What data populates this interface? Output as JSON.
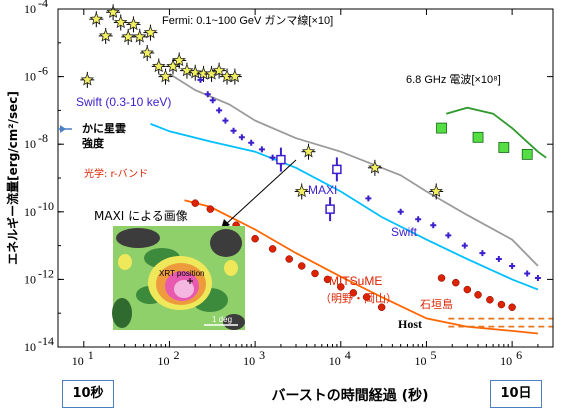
{
  "chart_data": {
    "type": "scatter",
    "xlabel": "バーストの時間経過 (秒)",
    "ylabel": "エネルギー流量[erg/cm²/sec]",
    "x_scale": "log",
    "y_scale": "log",
    "xlim": [
      5,
      3000000
    ],
    "ylim": [
      1e-14,
      0.0001
    ],
    "x_ticks": [
      {
        "exp": "1",
        "v": 10
      },
      {
        "exp": "2",
        "v": 100
      },
      {
        "exp": "3",
        "v": 1000
      },
      {
        "exp": "4",
        "v": 10000
      },
      {
        "exp": "5",
        "v": 100000
      },
      {
        "exp": "6",
        "v": 1000000
      }
    ],
    "y_ticks": [
      {
        "exp": "-4",
        "v": 0.0001
      },
      {
        "exp": "-6",
        "v": 1e-06
      },
      {
        "exp": "-8",
        "v": 1e-08
      },
      {
        "exp": "-10",
        "v": 1e-10
      },
      {
        "exp": "-12",
        "v": 1e-12
      },
      {
        "exp": "-14",
        "v": 1e-14
      }
    ],
    "tick_base": "10",
    "series": [
      {
        "name": "Fermi: 0.1~100 GeV ガンマ線[×10]",
        "color": "#222222",
        "marker": "star",
        "points": [
          [
            11,
            8e-07
          ],
          [
            14,
            5e-05
          ],
          [
            18,
            1.6e-05
          ],
          [
            22,
            8e-05
          ],
          [
            27,
            4e-05
          ],
          [
            33,
            1.5e-05
          ],
          [
            38,
            3.5e-05
          ],
          [
            45,
            1.5e-05
          ],
          [
            55,
            5e-06
          ],
          [
            60,
            2e-05
          ],
          [
            75,
            2e-06
          ],
          [
            90,
            1e-06
          ],
          [
            110,
            2e-06
          ],
          [
            130,
            3e-06
          ],
          [
            160,
            1.5e-06
          ],
          [
            200,
            1.3e-06
          ],
          [
            250,
            1.2e-06
          ],
          [
            310,
            1.2e-06
          ],
          [
            380,
            1.5e-06
          ],
          [
            470,
            1e-06
          ],
          [
            580,
            1e-06
          ],
          [
            3500,
            4e-10
          ],
          [
            4200,
            6e-09
          ],
          [
            25000,
            2e-09
          ],
          [
            130000,
            4e-10
          ]
        ]
      },
      {
        "name": "Swift (0.3-10 keV)",
        "color": "#3a1fcc",
        "marker": "plus",
        "points": [
          [
            230,
            8e-07
          ],
          [
            280,
            3e-07
          ],
          [
            320,
            2e-07
          ],
          [
            380,
            1e-07
          ],
          [
            450,
            5e-08
          ],
          [
            560,
            2.5e-08
          ],
          [
            700,
            1.6e-08
          ],
          [
            900,
            1.1e-08
          ],
          [
            1200,
            7e-09
          ],
          [
            1600,
            4e-09
          ],
          [
            2000,
            2.7e-09
          ],
          [
            21000,
            2.5e-10
          ],
          [
            50000,
            1e-10
          ],
          [
            80000,
            6e-11
          ],
          [
            120000,
            4e-11
          ],
          [
            180000,
            2e-11
          ],
          [
            280000,
            1e-11
          ],
          [
            450000,
            6e-12
          ],
          [
            700000,
            4e-12
          ],
          [
            1000000,
            2.5e-12
          ],
          [
            1500000,
            1.5e-12
          ],
          [
            2000000,
            1.1e-12
          ]
        ]
      },
      {
        "name": "光学: r-バンド",
        "color": "#dd2200",
        "marker": "circle",
        "points": [
          [
            200,
            1.8e-10
          ],
          [
            300,
            1.2e-10
          ],
          [
            600,
            4e-11
          ],
          [
            1000,
            1.6e-11
          ],
          [
            1600,
            8e-12
          ],
          [
            2500,
            4e-12
          ],
          [
            3500,
            2.5e-12
          ],
          [
            5000,
            1.5e-12
          ],
          [
            7000,
            1e-12
          ],
          [
            10000,
            6e-13
          ],
          [
            14000,
            4e-13
          ],
          [
            20000,
            3e-13
          ],
          [
            30000,
            1.5e-13
          ],
          [
            150000,
            1.1e-12
          ],
          [
            220000,
            8e-13
          ],
          [
            300000,
            5e-13
          ],
          [
            400000,
            3.5e-13
          ],
          [
            550000,
            2.5e-13
          ],
          [
            750000,
            1.8e-13
          ],
          [
            1000000,
            1.5e-13
          ]
        ]
      },
      {
        "name": "MAXI",
        "color": "#3a1fcc",
        "marker": "errorbar",
        "points": [
          [
            2000,
            3.5e-09
          ],
          [
            7500,
            1.2e-10
          ],
          [
            9000,
            1.8e-09
          ]
        ]
      },
      {
        "name": "6.8 GHz 電波[×10⁸]",
        "color": "#33cc33",
        "marker": "square",
        "points": [
          [
            150000,
            3e-08
          ],
          [
            400000,
            1.6e-08
          ],
          [
            800000,
            8e-09
          ],
          [
            1500000,
            5e-09
          ]
        ]
      },
      {
        "name": "Host",
        "color": "#e87722",
        "marker": "dashed",
        "points": [
          [
            180000,
            4e-14
          ],
          [
            3000000,
            4e-14
          ]
        ]
      }
    ],
    "model_lines": [
      {
        "name": "gray",
        "color": "#9a9a9a",
        "points": [
          [
            100,
            1.2e-06
          ],
          [
            200,
            4e-07
          ],
          [
            500,
            1.5e-07
          ],
          [
            1000,
            5e-08
          ],
          [
            3000,
            1.5e-08
          ],
          [
            10000,
            6e-09
          ],
          [
            50000,
            1.2e-09
          ],
          [
            100000,
            4e-10
          ],
          [
            300000,
            8e-11
          ],
          [
            1000000,
            1.5e-11
          ],
          [
            2000000,
            2.5e-12
          ]
        ]
      },
      {
        "name": "cyan",
        "color": "#00bfff",
        "points": [
          [
            60,
            4e-08
          ],
          [
            100,
            2.4e-08
          ],
          [
            300,
            1.2e-08
          ],
          [
            1000,
            6e-09
          ],
          [
            3000,
            2e-09
          ],
          [
            10000,
            4e-10
          ],
          [
            30000,
            7e-11
          ],
          [
            100000,
            1.5e-11
          ],
          [
            300000,
            4e-12
          ],
          [
            1000000,
            1e-12
          ],
          [
            2000000,
            5e-13
          ]
        ]
      },
      {
        "name": "orange",
        "color": "#ff6600",
        "points": [
          [
            150,
            2.2e-10
          ],
          [
            300,
            1.4e-10
          ],
          [
            1000,
            3e-11
          ],
          [
            3000,
            6e-12
          ],
          [
            10000,
            1.2e-12
          ],
          [
            30000,
            3e-13
          ],
          [
            100000,
            7e-14
          ],
          [
            300000,
            4e-14
          ],
          [
            1000000,
            3e-14
          ],
          [
            2000000,
            2.5e-14
          ]
        ]
      },
      {
        "name": "green",
        "color": "#2e9a2e",
        "points": [
          [
            170000,
            8e-08
          ],
          [
            300000,
            1.2e-07
          ],
          [
            600000,
            8e-08
          ],
          [
            1000000,
            3e-08
          ],
          [
            2000000,
            6e-09
          ],
          [
            2500000,
            4e-09
          ]
        ]
      }
    ],
    "annotations": {
      "crab": "かに星雲",
      "crab2": "強度",
      "inset_title": "MAXI による画像",
      "xrt": "XRT position",
      "deg": "1 deg",
      "mitsume": "MITSuME",
      "mitsume_sites": "（明野・岡山）",
      "ishigaki": "石垣島",
      "maxi": "MAXI",
      "swift": "Swift"
    }
  },
  "boxes": {
    "left": "10秒",
    "right": "10日"
  },
  "colors": {
    "axis": "#000000",
    "box_border": "#4a7fc1",
    "crab_arrow": "#4a7fc1"
  }
}
